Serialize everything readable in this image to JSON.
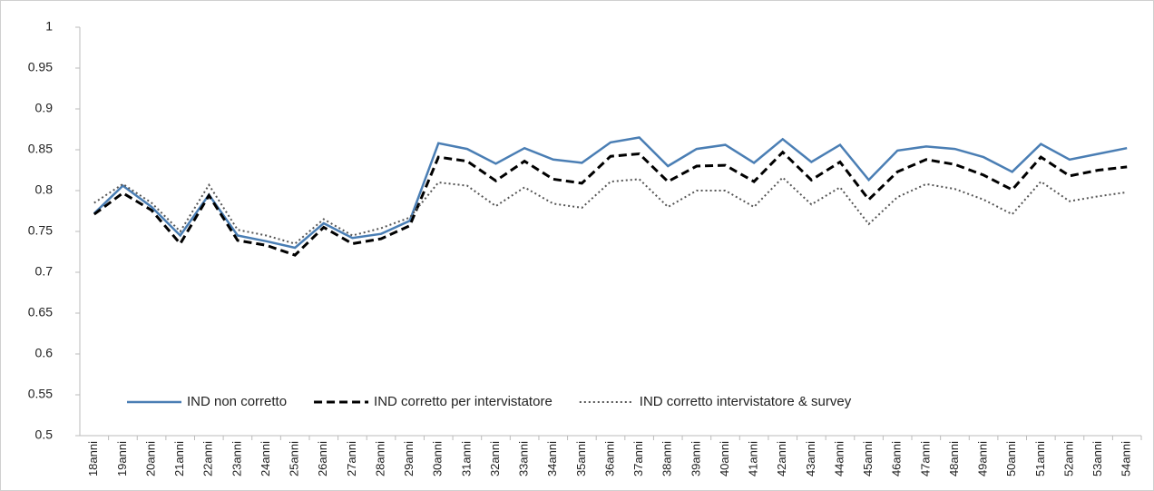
{
  "chart_data": {
    "type": "line",
    "categories": [
      "18anni",
      "19anni",
      "20anni",
      "21anni",
      "22anni",
      "23anni",
      "24anni",
      "25anni",
      "26anni",
      "27anni",
      "28anni",
      "29anni",
      "30anni",
      "31anni",
      "32anni",
      "33anni",
      "34anni",
      "35anni",
      "36anni",
      "37anni",
      "38anni",
      "39anni",
      "40anni",
      "41anni",
      "42anni",
      "43anni",
      "44anni",
      "45anni",
      "46anni",
      "47anni",
      "48anni",
      "49anni",
      "50anni",
      "51anni",
      "52anni",
      "53anni",
      "54anni"
    ],
    "series": [
      {
        "name": "IND non corretto",
        "color": "#4a7eb4",
        "dash": "solid",
        "values": [
          0.772,
          0.806,
          0.78,
          0.745,
          0.795,
          0.745,
          0.738,
          0.73,
          0.76,
          0.742,
          0.747,
          0.763,
          0.858,
          0.851,
          0.833,
          0.852,
          0.838,
          0.834,
          0.859,
          0.865,
          0.83,
          0.851,
          0.856,
          0.834,
          0.863,
          0.835,
          0.856,
          0.813,
          0.849,
          0.854,
          0.851,
          0.841,
          0.823,
          0.857,
          0.838,
          0.845,
          0.852
        ]
      },
      {
        "name": "IND corretto per intervistatore",
        "color": "#000000",
        "dash": "dashed",
        "values": [
          0.771,
          0.797,
          0.776,
          0.735,
          0.794,
          0.739,
          0.733,
          0.721,
          0.755,
          0.735,
          0.741,
          0.757,
          0.841,
          0.836,
          0.812,
          0.836,
          0.814,
          0.809,
          0.842,
          0.845,
          0.811,
          0.83,
          0.831,
          0.811,
          0.847,
          0.813,
          0.835,
          0.789,
          0.823,
          0.838,
          0.832,
          0.819,
          0.801,
          0.841,
          0.818,
          0.825,
          0.829
        ]
      },
      {
        "name": "IND corretto intervistatore & survey",
        "color": "#555555",
        "dash": "dotted",
        "values": [
          0.785,
          0.808,
          0.785,
          0.75,
          0.807,
          0.752,
          0.745,
          0.735,
          0.765,
          0.745,
          0.754,
          0.767,
          0.81,
          0.806,
          0.781,
          0.804,
          0.784,
          0.779,
          0.811,
          0.814,
          0.78,
          0.8,
          0.8,
          0.78,
          0.816,
          0.783,
          0.804,
          0.759,
          0.792,
          0.808,
          0.802,
          0.789,
          0.771,
          0.811,
          0.787,
          0.793,
          0.798
        ]
      }
    ],
    "ylim": [
      0.5,
      1
    ],
    "yticks": [
      0.5,
      0.55,
      0.6,
      0.65,
      0.7,
      0.75,
      0.8,
      0.85,
      0.9,
      0.95,
      1
    ],
    "grid": false,
    "legend": "bottom"
  }
}
